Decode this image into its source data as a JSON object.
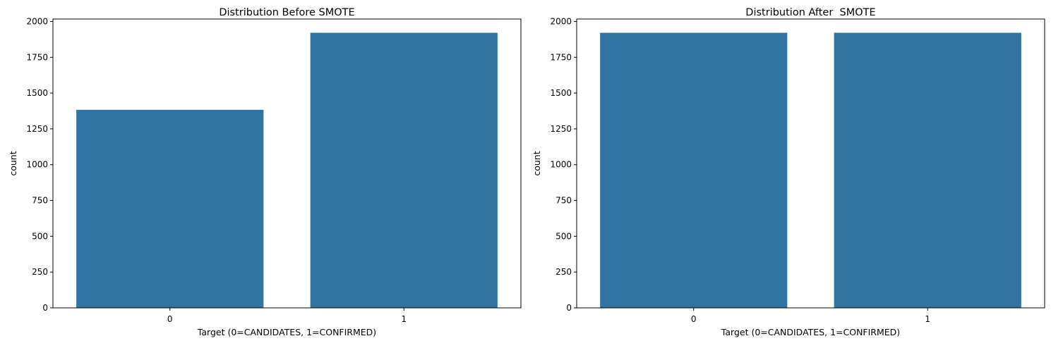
{
  "chart_data": [
    {
      "type": "bar",
      "title": "Distribution Before SMOTE",
      "xlabel": "Target (0=CANDIDATES, 1=CONFIRMED)",
      "ylabel": "count",
      "categories": [
        "0",
        "1"
      ],
      "values": [
        1383,
        1921
      ],
      "ylim": [
        0,
        2017
      ],
      "yticks": [
        0,
        250,
        500,
        750,
        1000,
        1250,
        1500,
        1750,
        2000
      ],
      "grid": false,
      "bar_color": "#3274a1"
    },
    {
      "type": "bar",
      "title": "Distribution After  SMOTE",
      "xlabel": "Target (0=CANDIDATES, 1=CONFIRMED)",
      "ylabel": "count",
      "categories": [
        "0",
        "1"
      ],
      "values": [
        1921,
        1921
      ],
      "ylim": [
        0,
        2017
      ],
      "yticks": [
        0,
        250,
        500,
        750,
        1000,
        1250,
        1500,
        1750,
        2000
      ],
      "grid": false,
      "bar_color": "#3274a1"
    }
  ]
}
